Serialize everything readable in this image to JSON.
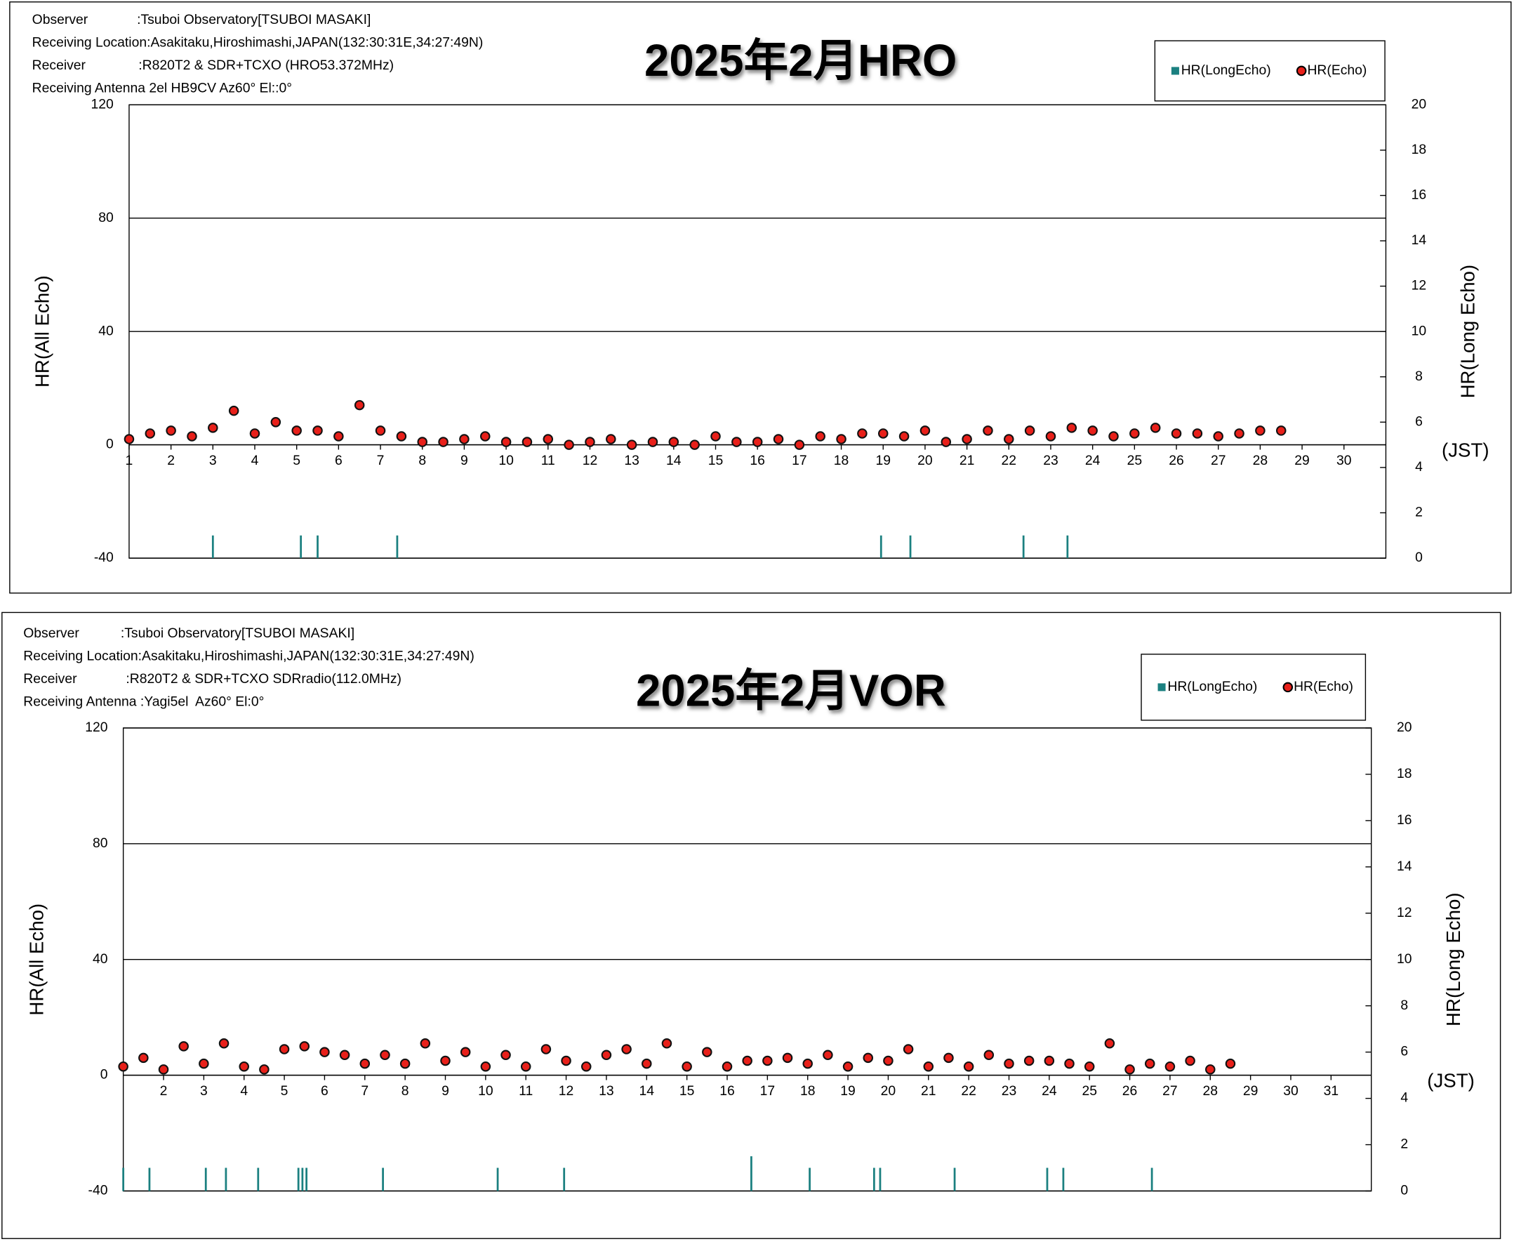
{
  "chart_data": [
    {
      "type": "scatter",
      "title": "2025年2月HRO",
      "notes": [
        "Observer             :Tsuboi Observatory[TSUBOI MASAKI]",
        "Receiving Location:Asakitaku,Hiroshimashi,JAPAN(132:30:31E,34:27:49N)",
        "Receiver              :R820T2 & SDR+TCXO (HRO53.372MHz)",
        "Receiving Antenna 2el HB9CV Az60° El::0°"
      ],
      "y_label": "HR(All Echo)",
      "y2_label": "HR(Long Echo)",
      "x_unit": "(JST)",
      "xlim": [
        1,
        31
      ],
      "xticks": [
        1,
        2,
        3,
        4,
        5,
        6,
        7,
        8,
        9,
        10,
        11,
        12,
        13,
        14,
        15,
        16,
        17,
        18,
        19,
        20,
        21,
        22,
        23,
        24,
        25,
        26,
        27,
        28,
        29,
        30
      ],
      "ylim": [
        -40,
        120
      ],
      "yticks": [
        -40,
        0,
        40,
        80,
        120
      ],
      "y2lim": [
        0,
        20
      ],
      "y2ticks": [
        0,
        2,
        4,
        6,
        8,
        10,
        12,
        14,
        16,
        18,
        20
      ],
      "grid": true,
      "series": [
        {
          "name": "HR(LongEcho)",
          "color": "#1b8080",
          "axis": "y2",
          "x": [
            3,
            5.1,
            5.5,
            7.4,
            18.95,
            19.65,
            22.35,
            23.4
          ],
          "values": [
            1,
            1,
            1,
            1,
            1,
            1,
            1,
            1
          ]
        },
        {
          "name": "HR(Echo)",
          "color": "#e8201a",
          "x": [
            1,
            1.5,
            2,
            2.5,
            3,
            3.5,
            4,
            4.5,
            5,
            5.5,
            6,
            6.5,
            7,
            7.5,
            8,
            8.5,
            9,
            9.5,
            10,
            10.5,
            11,
            11.5,
            12,
            12.5,
            13,
            13.5,
            14,
            14.5,
            15,
            15.5,
            16,
            16.5,
            17,
            17.5,
            18,
            18.5,
            19,
            19.5,
            20,
            20.5,
            21,
            21.5,
            22,
            22.5,
            23,
            23.5,
            24,
            24.5,
            25,
            25.5,
            26,
            26.5,
            27,
            27.5,
            28,
            28.5
          ],
          "values": [
            2,
            4,
            5,
            3,
            6,
            12,
            4,
            8,
            5,
            5,
            3,
            14,
            5,
            3,
            1,
            1,
            2,
            3,
            1,
            1,
            2,
            0,
            1,
            2,
            0,
            1,
            1,
            0,
            3,
            1,
            1,
            2,
            0,
            3,
            2,
            4,
            4,
            3,
            5,
            1,
            2,
            5,
            2,
            5,
            3,
            6,
            5,
            3,
            4,
            6,
            4,
            4,
            3,
            4,
            5,
            5
          ]
        }
      ]
    },
    {
      "type": "scatter",
      "title": "2025年2月VOR",
      "notes": [
        "Observer           :Tsuboi Observatory[TSUBOI MASAKI]",
        "Receiving Location:Asakitaku,Hiroshimashi,JAPAN(132:30:31E,34:27:49N)",
        "Receiver             :R820T2 & SDR+TCXO SDRradio(112.0MHz)",
        "Receiving Antenna :Yagi5el  Az60° El:0°"
      ],
      "y_label": "HR(All Echo)",
      "y2_label": "HR(Long Echo)",
      "x_unit": "(JST)",
      "xlim": [
        1,
        32
      ],
      "xticks": [
        2,
        3,
        4,
        5,
        6,
        7,
        8,
        9,
        10,
        11,
        12,
        13,
        14,
        15,
        16,
        17,
        18,
        19,
        20,
        21,
        22,
        23,
        24,
        25,
        26,
        27,
        28,
        29,
        30,
        31
      ],
      "ylim": [
        -40,
        120
      ],
      "yticks": [
        -40,
        0,
        40,
        80,
        120
      ],
      "y2lim": [
        0,
        20
      ],
      "y2ticks": [
        0,
        2,
        4,
        6,
        8,
        10,
        12,
        14,
        16,
        18,
        20
      ],
      "grid": true,
      "series": [
        {
          "name": "HR(LongEcho)",
          "color": "#1b8080",
          "axis": "y2",
          "x": [
            1,
            1.65,
            3.05,
            3.55,
            4.35,
            5.35,
            5.45,
            5.55,
            7.45,
            10.3,
            11.95,
            16.6,
            18.05,
            19.65,
            19.8,
            21.65,
            23.95,
            24.35,
            26.55
          ],
          "values": [
            1,
            1,
            1,
            1,
            1,
            1,
            1,
            1,
            1,
            1,
            1,
            1.5,
            1,
            1,
            1,
            1,
            1,
            1,
            1
          ]
        },
        {
          "name": "HR(Echo)",
          "color": "#e8201a",
          "x": [
            1,
            1.5,
            2,
            2.5,
            3,
            3.5,
            4,
            4.5,
            5,
            5.5,
            6,
            6.5,
            7,
            7.5,
            8,
            8.5,
            9,
            9.5,
            10,
            10.5,
            11,
            11.5,
            12,
            12.5,
            13,
            13.5,
            14,
            14.5,
            15,
            15.5,
            16,
            16.5,
            17,
            17.5,
            18,
            18.5,
            19,
            19.5,
            20,
            20.5,
            21,
            21.5,
            22,
            22.5,
            23,
            23.5,
            24,
            24.5,
            25,
            25.5,
            26,
            26.5,
            27,
            27.5,
            28,
            28.5
          ],
          "values": [
            3,
            6,
            2,
            10,
            4,
            11,
            3,
            2,
            9,
            10,
            8,
            7,
            4,
            7,
            4,
            11,
            5,
            8,
            3,
            7,
            3,
            9,
            5,
            3,
            7,
            9,
            4,
            11,
            3,
            8,
            3,
            5,
            5,
            6,
            4,
            7,
            3,
            6,
            5,
            9,
            3,
            6,
            3,
            7,
            4,
            5,
            5,
            4,
            3,
            11,
            2,
            4,
            3,
            5,
            2,
            4
          ]
        }
      ]
    }
  ]
}
